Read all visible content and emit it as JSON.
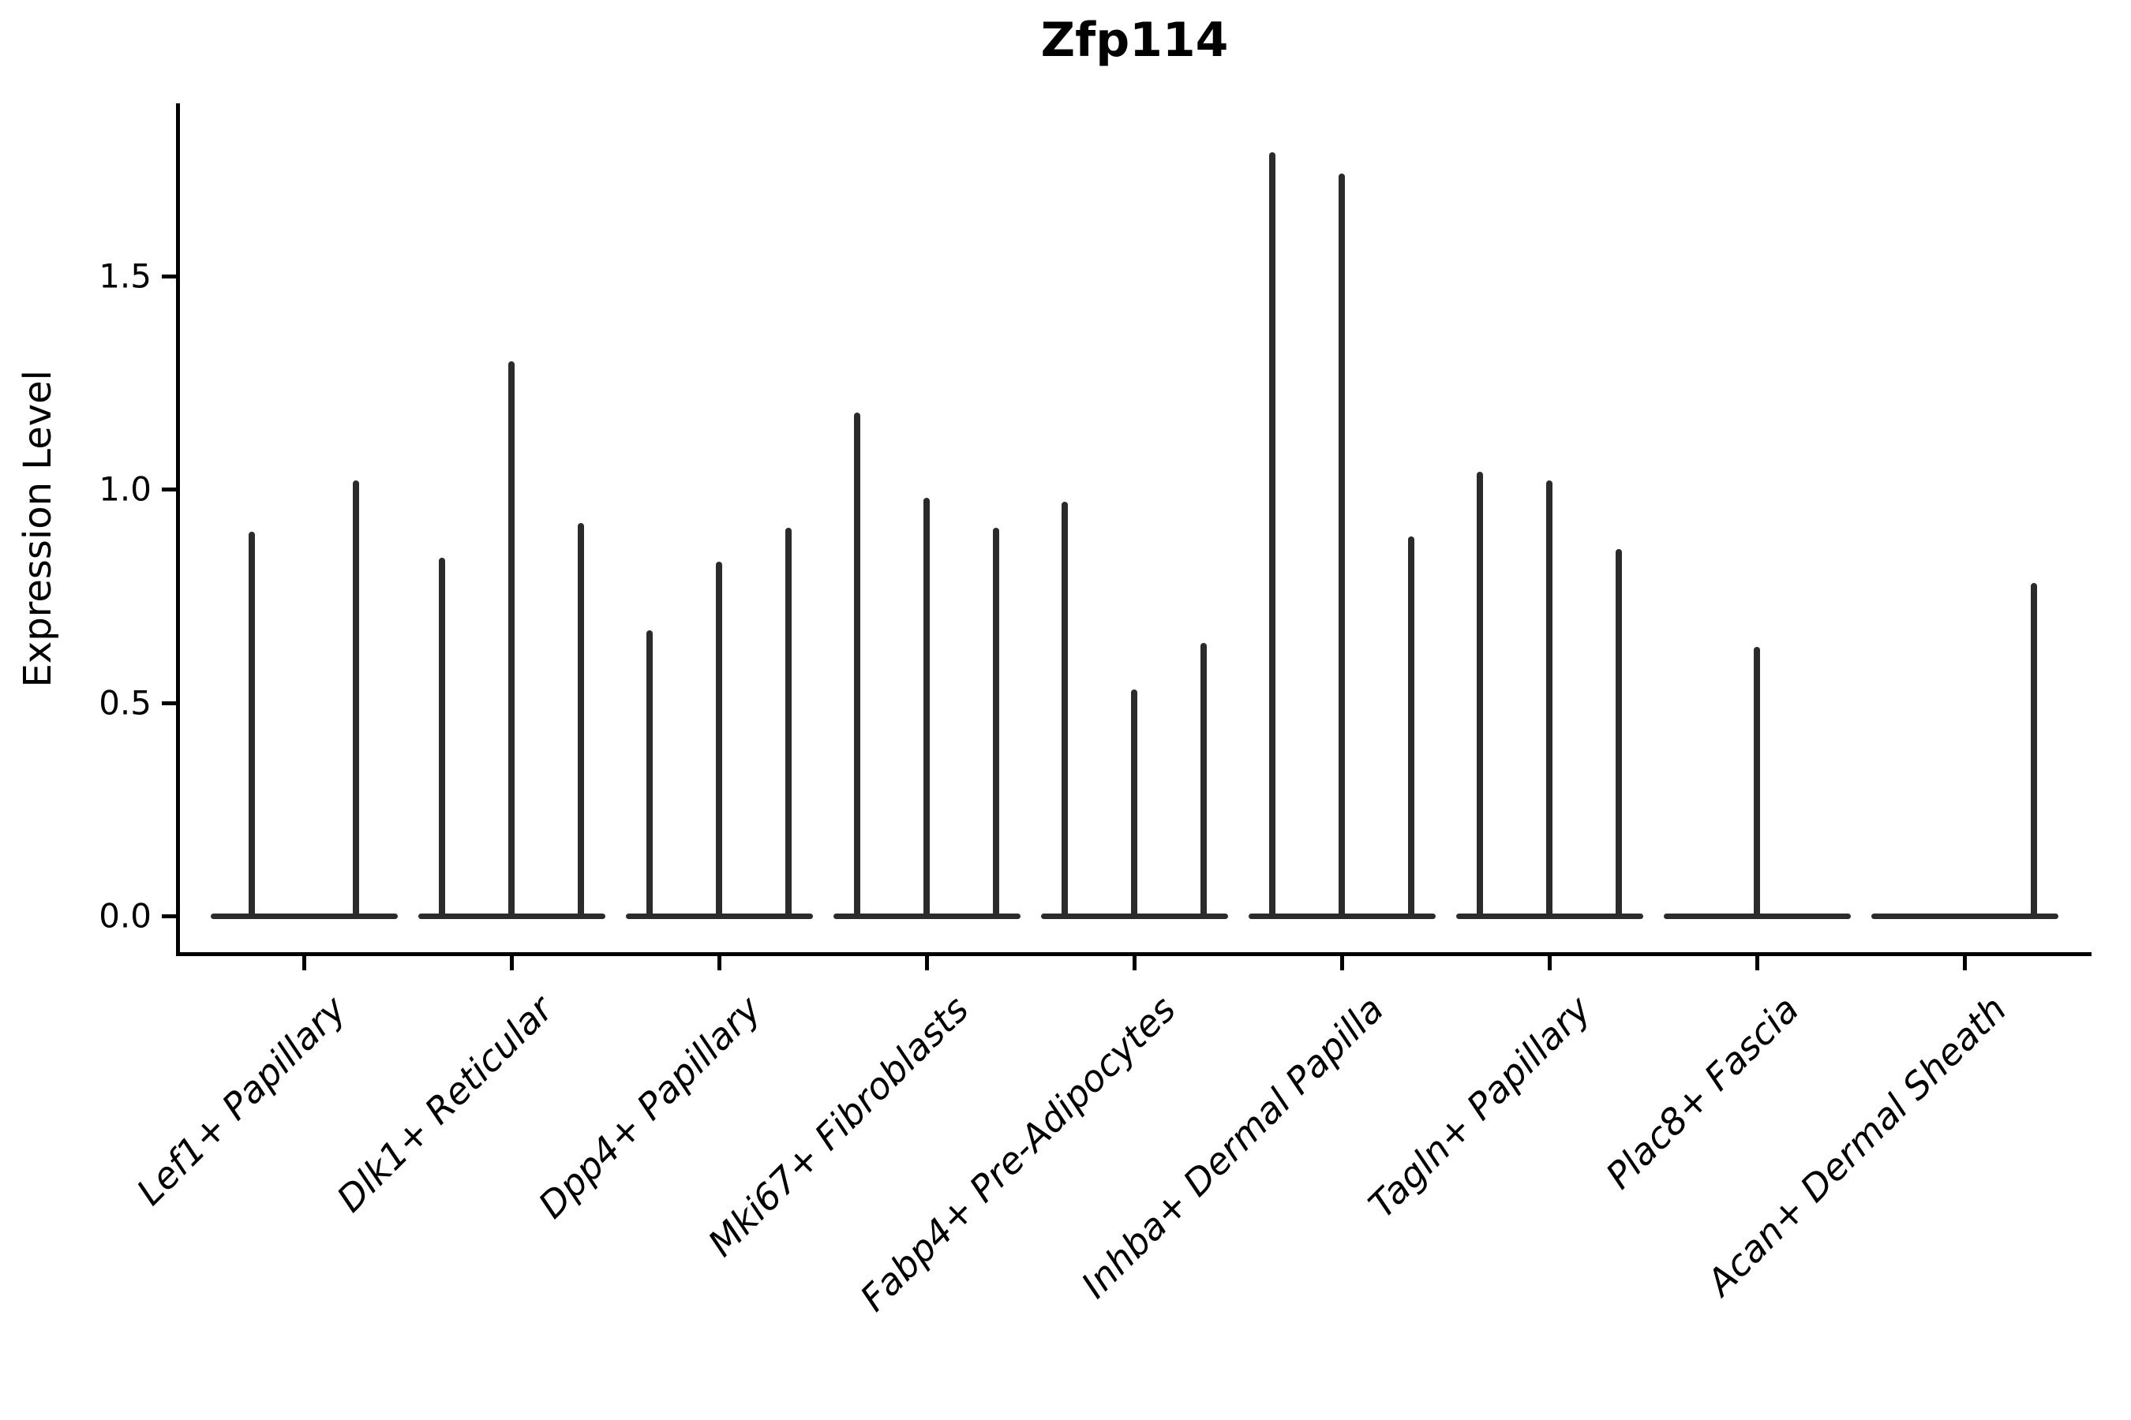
{
  "chart_data": {
    "type": "violin",
    "title": "Zfp114",
    "xlabel": "",
    "ylabel": "Expression Level",
    "yticks": [
      0.0,
      0.5,
      1.0,
      1.5
    ],
    "ytick_labels": [
      "0.0",
      "0.5",
      "1.0",
      "1.5"
    ],
    "ylim": [
      -0.09,
      1.9
    ],
    "grid": false,
    "legend": null,
    "x_tick_rotation_deg": 45,
    "categories": [
      "Lef1+ Papillary",
      "Dlk1+ Reticular",
      "Dpp4+ Papillary",
      "Mki67+ Fibroblasts",
      "Fabp4+ Pre-Adipocytes",
      "Inhba+ Dermal Papilla",
      "Tagln+ Papillary",
      "Plac8+ Fascia",
      "Acan+ Dermal Sheath"
    ],
    "description": "Each category shows narrow spike violins: a flat body at expression 0 with thin spikes rising to the maximum expression value of each sub-violin. max 0 means a completely flat violin (no spike).",
    "violins": [
      {
        "label": "Lef1+ Papillary",
        "spikes": [
          {
            "rel": -0.25,
            "max": 0.9
          },
          {
            "rel": 0.25,
            "max": 1.02
          }
        ]
      },
      {
        "label": "Dlk1+ Reticular",
        "spikes": [
          {
            "rel": -0.3333,
            "max": 0.84
          },
          {
            "rel": 0,
            "max": 1.3
          },
          {
            "rel": 0.3333,
            "max": 0.92
          }
        ]
      },
      {
        "label": "Dpp4+ Papillary",
        "spikes": [
          {
            "rel": -0.3333,
            "max": 0.67
          },
          {
            "rel": 0,
            "max": 0.83
          },
          {
            "rel": 0.3333,
            "max": 0.91
          }
        ]
      },
      {
        "label": "Mki67+ Fibroblasts",
        "spikes": [
          {
            "rel": -0.3333,
            "max": 1.18
          },
          {
            "rel": 0,
            "max": 0.98
          },
          {
            "rel": 0.3333,
            "max": 0.91
          }
        ]
      },
      {
        "label": "Fabp4+ Pre-Adipocytes",
        "spikes": [
          {
            "rel": -0.3333,
            "max": 0.97
          },
          {
            "rel": 0,
            "max": 0.53
          },
          {
            "rel": 0.3333,
            "max": 0.64
          }
        ]
      },
      {
        "label": "Inhba+ Dermal Papilla",
        "spikes": [
          {
            "rel": -0.3333,
            "max": 1.79
          },
          {
            "rel": 0,
            "max": 1.74
          },
          {
            "rel": 0.3333,
            "max": 0.89
          }
        ]
      },
      {
        "label": "Tagln+ Papillary",
        "spikes": [
          {
            "rel": -0.3333,
            "max": 1.04
          },
          {
            "rel": 0,
            "max": 1.02
          },
          {
            "rel": 0.3333,
            "max": 0.86
          }
        ]
      },
      {
        "label": "Plac8+ Fascia",
        "spikes": [
          {
            "rel": -0.3333,
            "max": 0
          },
          {
            "rel": 0,
            "max": 0.63
          },
          {
            "rel": 0.3333,
            "max": 0
          }
        ]
      },
      {
        "label": "Acan+ Dermal Sheath",
        "spikes": [
          {
            "rel": -0.3333,
            "max": 0
          },
          {
            "rel": 0,
            "max": 0
          },
          {
            "rel": 0.3333,
            "max": 0.78
          }
        ]
      }
    ],
    "colors": {
      "violin_line": "#2b2b2b",
      "axis": "#000000",
      "text": "#000000",
      "background": "#ffffff"
    }
  }
}
